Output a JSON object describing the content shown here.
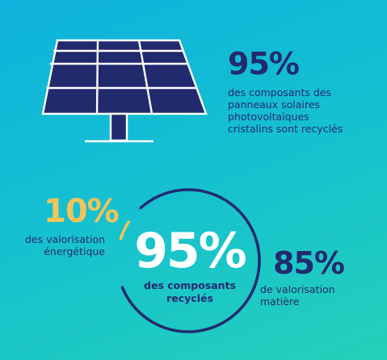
{
  "colors": {
    "navy": "#222a6e",
    "yellow": "#f2c45a",
    "white": "#ffffff"
  },
  "icons": {
    "panel": "solar-panel-icon",
    "ring": "recycling-progress-ring"
  },
  "top": {
    "stat": "95%",
    "description": [
      "des composants des",
      "panneaux solaires",
      "photovoltaïques",
      "cristalins sont recyclés"
    ]
  },
  "center": {
    "stat": "95%",
    "description": [
      "des composants",
      "recyclés"
    ]
  },
  "energy": {
    "stat": "10%",
    "description": [
      "des valorisation",
      "énergétique"
    ]
  },
  "matter": {
    "stat": "85%",
    "description": [
      "de valorisation",
      "matière"
    ]
  }
}
